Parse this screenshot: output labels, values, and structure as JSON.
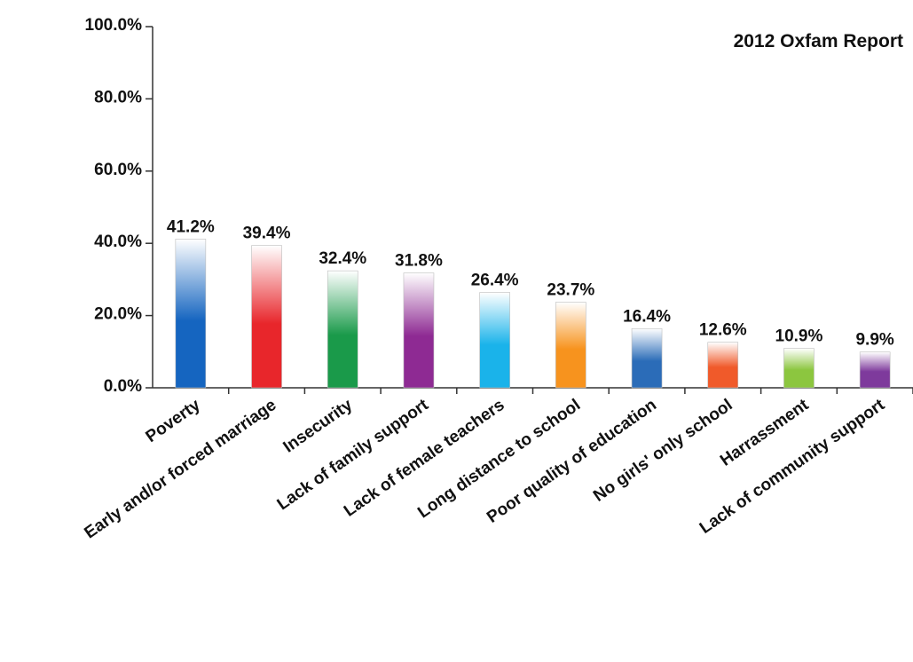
{
  "chart_data": {
    "type": "bar",
    "title": "2012 Oxfam Report",
    "xlabel": "",
    "ylabel": "",
    "ylim": [
      0,
      100
    ],
    "yticks": [
      "0.0%",
      "20.0%",
      "40.0%",
      "60.0%",
      "80.0%",
      "100.0%"
    ],
    "grid": false,
    "categories": [
      "Poverty",
      "Early and/or forced marriage",
      "Insecurity",
      "Lack of family support",
      "Lack of female teachers",
      "Long distance to school",
      "Poor quality of education",
      "No girls' only school",
      "Harrassment",
      "Lack of community support"
    ],
    "values": [
      41.2,
      39.4,
      32.4,
      31.8,
      26.4,
      23.7,
      16.4,
      12.6,
      10.9,
      9.9
    ],
    "data_labels": [
      "41.2%",
      "39.4%",
      "32.4%",
      "31.8%",
      "26.4%",
      "23.7%",
      "16.4%",
      "12.6%",
      "10.9%",
      "9.9%"
    ],
    "colors": [
      "#1565c0",
      "#e8262b",
      "#1a9a4a",
      "#8e2a93",
      "#1ab3ea",
      "#f7931e",
      "#2b6cb8",
      "#f05a2a",
      "#8cc63f",
      "#7e3a9c"
    ]
  }
}
